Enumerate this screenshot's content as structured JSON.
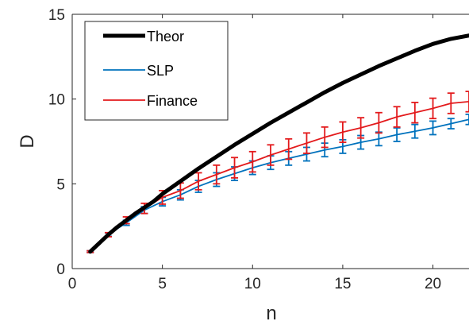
{
  "chart_data": {
    "type": "line",
    "xlabel": "n",
    "ylabel": "D",
    "xlim": [
      0,
      22
    ],
    "ylim": [
      0,
      15
    ],
    "xticks": [
      0,
      5,
      10,
      15,
      20
    ],
    "yticks": [
      0,
      5,
      10,
      15
    ],
    "grid": false,
    "legend_position": "top-left",
    "series": [
      {
        "name": "Theor",
        "color": "#000000",
        "style": "thick-line",
        "x": [
          1,
          1.5,
          2,
          2.5,
          3,
          3.5,
          4,
          4.5,
          5,
          6,
          7,
          8,
          9,
          10,
          11,
          12,
          13,
          14,
          15,
          16,
          17,
          18,
          19,
          20,
          21,
          22
        ],
        "y": [
          1.0,
          1.5,
          2.0,
          2.45,
          2.85,
          3.25,
          3.6,
          3.95,
          4.4,
          5.15,
          5.9,
          6.6,
          7.3,
          7.95,
          8.6,
          9.2,
          9.8,
          10.4,
          10.95,
          11.45,
          11.95,
          12.4,
          12.85,
          13.25,
          13.55,
          13.75
        ]
      },
      {
        "name": "SLP",
        "color": "#0072BD",
        "style": "line-errorbars",
        "x": [
          1,
          2,
          3,
          4,
          5,
          6,
          7,
          8,
          9,
          10,
          11,
          12,
          13,
          14,
          15,
          16,
          17,
          18,
          19,
          20,
          21,
          22
        ],
        "y": [
          1.0,
          2.0,
          2.7,
          3.45,
          3.95,
          4.35,
          4.85,
          5.25,
          5.6,
          5.95,
          6.25,
          6.5,
          6.75,
          7.0,
          7.2,
          7.45,
          7.65,
          7.9,
          8.1,
          8.3,
          8.55,
          8.8
        ],
        "err": [
          0.05,
          0.1,
          0.15,
          0.2,
          0.25,
          0.3,
          0.35,
          0.4,
          0.4,
          0.4,
          0.4,
          0.4,
          0.4,
          0.4,
          0.4,
          0.4,
          0.4,
          0.4,
          0.4,
          0.4,
          0.3,
          0.3
        ]
      },
      {
        "name": "Finance",
        "color": "#E31A1C",
        "style": "line-errorbars",
        "x": [
          1,
          2,
          3,
          4,
          5,
          6,
          7,
          8,
          9,
          10,
          11,
          12,
          13,
          14,
          15,
          16,
          17,
          18,
          19,
          20,
          21,
          22
        ],
        "y": [
          1.0,
          2.0,
          2.85,
          3.55,
          4.2,
          4.6,
          5.15,
          5.55,
          5.95,
          6.3,
          6.7,
          7.05,
          7.4,
          7.75,
          8.05,
          8.3,
          8.6,
          8.95,
          9.2,
          9.45,
          9.75,
          9.85
        ],
        "err": [
          0.05,
          0.12,
          0.2,
          0.3,
          0.4,
          0.45,
          0.5,
          0.55,
          0.6,
          0.6,
          0.6,
          0.6,
          0.6,
          0.6,
          0.6,
          0.6,
          0.6,
          0.6,
          0.6,
          0.6,
          0.6,
          0.6
        ]
      }
    ]
  }
}
